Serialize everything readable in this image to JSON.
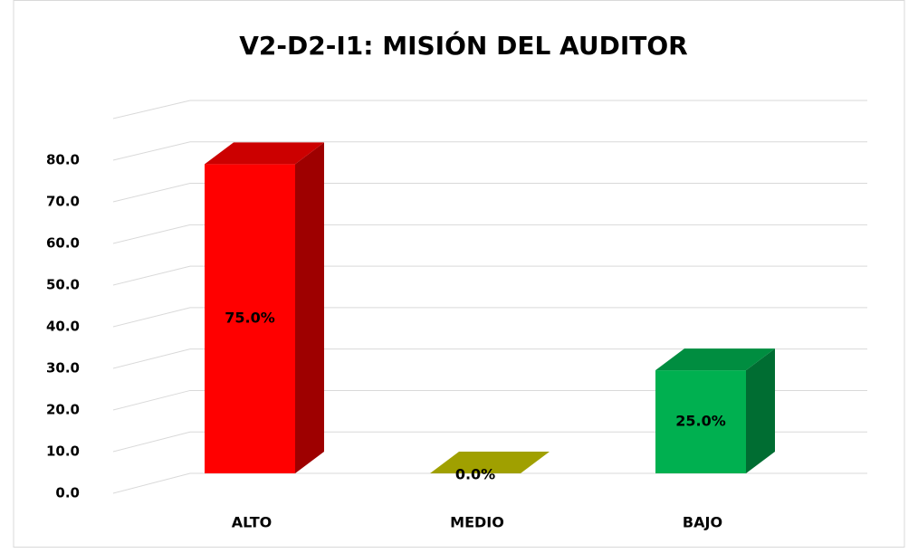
{
  "chart_data": {
    "type": "bar3d",
    "title": "V2-D2-I1: MISIÓN DEL AUDITOR",
    "categories": [
      "ALTO",
      "MEDIO",
      "BAJO"
    ],
    "values": [
      75,
      0,
      25
    ],
    "value_labels": [
      "75.0%",
      "0.0%",
      "25.0%"
    ],
    "colors": [
      "#ff0000",
      "#c8c800",
      "#00b050"
    ],
    "ylim": [
      0,
      90
    ],
    "yticks": [
      {
        "value": 0,
        "label": "0.0"
      },
      {
        "value": 10,
        "label": "10.0"
      },
      {
        "value": 20,
        "label": "20.0"
      },
      {
        "value": 30,
        "label": "30.0"
      },
      {
        "value": 40,
        "label": "40.0"
      },
      {
        "value": 50,
        "label": "50.0"
      },
      {
        "value": 60,
        "label": "60.0"
      },
      {
        "value": 70,
        "label": "70.0"
      },
      {
        "value": 80,
        "label": "80.0"
      }
    ],
    "grid": true
  }
}
